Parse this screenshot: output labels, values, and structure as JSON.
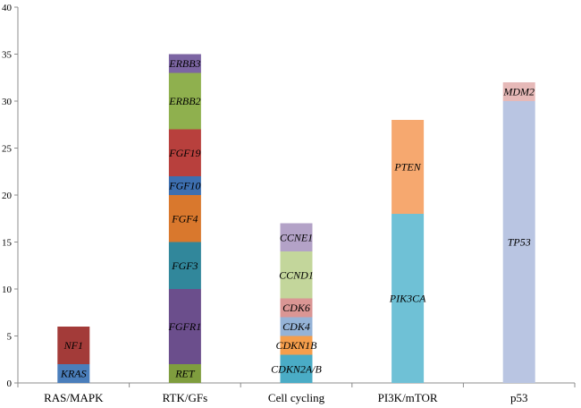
{
  "chart_data": {
    "type": "bar",
    "stacked": true,
    "title": "",
    "xlabel": "",
    "ylabel": "",
    "ylim": [
      0,
      40
    ],
    "yticks": [
      0,
      5,
      10,
      15,
      20,
      25,
      30,
      35,
      40
    ],
    "grid": false,
    "legend": "none",
    "categories": [
      "RAS/MAPK",
      "RTK/GFs",
      "Cell cycling",
      "PI3K/mTOR",
      "p53"
    ],
    "bars": [
      {
        "category": "RAS/MAPK",
        "segments": [
          {
            "label": "KRAS",
            "value": 2,
            "color": "#4a7ebb"
          },
          {
            "label": "NF1",
            "value": 4,
            "color": "#a33b39"
          }
        ]
      },
      {
        "category": "RTK/GFs",
        "segments": [
          {
            "label": "RET",
            "value": 2,
            "color": "#7f9d3e"
          },
          {
            "label": "FGFR1",
            "value": 8,
            "color": "#6b4e8c"
          },
          {
            "label": "FGF3",
            "value": 5,
            "color": "#31879b"
          },
          {
            "label": "FGF4",
            "value": 5,
            "color": "#d9782d"
          },
          {
            "label": "FGF10",
            "value": 2,
            "color": "#3d6fb0"
          },
          {
            "label": "FGF19",
            "value": 5,
            "color": "#b8403d"
          },
          {
            "label": "ERBB2",
            "value": 6,
            "color": "#8fb04e"
          },
          {
            "label": "ERBB3",
            "value": 2,
            "color": "#7c65a3"
          }
        ]
      },
      {
        "category": "Cell cycling",
        "segments": [
          {
            "label": "CDKN2A/B",
            "value": 3,
            "color": "#4aacc6"
          },
          {
            "label": "CDKN1B",
            "value": 2,
            "color": "#f59e4c"
          },
          {
            "label": "CDK4",
            "value": 2,
            "color": "#95b3d7"
          },
          {
            "label": "CDK6",
            "value": 2,
            "color": "#da9694"
          },
          {
            "label": "CCND1",
            "value": 5,
            "color": "#c3d69b"
          },
          {
            "label": "CCNE1",
            "value": 3,
            "color": "#b3a2c7"
          }
        ]
      },
      {
        "category": "PI3K/mTOR",
        "segments": [
          {
            "label": "PIK3CA",
            "value": 18,
            "color": "#6fc1d6"
          },
          {
            "label": "PTEN",
            "value": 10,
            "color": "#f6a86f"
          }
        ]
      },
      {
        "category": "p53",
        "segments": [
          {
            "label": "TP53",
            "value": 30,
            "color": "#b9c5e2"
          },
          {
            "label": "MDM2",
            "value": 2,
            "color": "#e6b9b8"
          }
        ]
      }
    ]
  }
}
